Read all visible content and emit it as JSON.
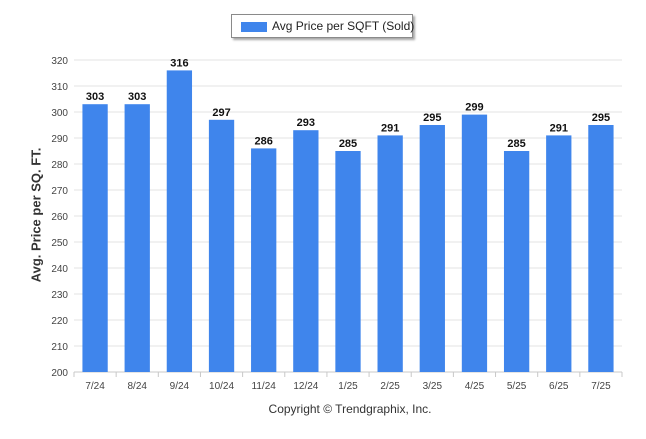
{
  "legend": {
    "label": "Avg Price per SQFT (Sold)"
  },
  "copyright": "Copyright © Trendgraphix, Inc.",
  "chart_data": {
    "type": "bar",
    "title": "",
    "xlabel": "",
    "ylabel": "Avg. Price per SQ. FT.",
    "categories": [
      "7/24",
      "8/24",
      "9/24",
      "10/24",
      "11/24",
      "12/24",
      "1/25",
      "2/25",
      "3/25",
      "4/25",
      "5/25",
      "6/25",
      "7/25"
    ],
    "series": [
      {
        "name": "Avg Price per SQFT (Sold)",
        "color": "#3f85ec",
        "values": [
          303,
          303,
          316,
          297,
          286,
          293,
          285,
          291,
          295,
          299,
          285,
          291,
          295
        ]
      }
    ],
    "ylim": [
      200,
      320
    ],
    "yticks": [
      200,
      210,
      220,
      230,
      240,
      250,
      260,
      270,
      280,
      290,
      300,
      310,
      320
    ],
    "grid": true,
    "legend_position": "top-center",
    "data_labels": true
  }
}
